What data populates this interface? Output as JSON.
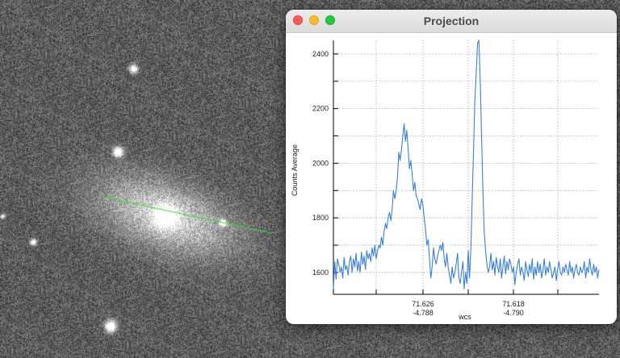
{
  "window": {
    "title": "Projection",
    "buttons": {
      "close": "close",
      "minimize": "minimize",
      "zoom": "zoom"
    }
  },
  "chart_data": {
    "type": "line",
    "xlabel": "wcs",
    "ylabel": "Counts Average",
    "ylim": [
      1520,
      2450
    ],
    "y_ticks": [
      1600,
      1800,
      2000,
      2200,
      2400
    ],
    "x_tick_labels": [
      {
        "ra": "71.626",
        "dec": "-4.788"
      },
      {
        "ra": "71.618",
        "dec": "-4.790"
      }
    ],
    "grid": true,
    "line_color": "#3a7fdc",
    "series": [
      {
        "x": [
          0,
          1,
          2,
          3,
          4,
          5,
          6,
          7,
          8,
          9,
          10,
          11,
          12,
          13,
          14,
          15,
          16,
          17,
          18,
          19,
          20,
          21,
          22,
          23,
          24,
          25,
          26,
          27,
          28,
          29,
          30,
          31,
          32,
          33,
          34,
          35,
          36,
          37,
          38,
          39,
          40,
          41,
          42,
          43,
          44,
          45,
          46,
          47,
          48,
          49,
          50,
          51,
          52,
          53,
          54,
          55,
          56,
          57,
          58,
          59,
          60,
          61,
          62,
          63,
          64,
          65,
          66,
          67,
          68,
          69,
          70,
          71,
          72,
          73,
          74,
          75,
          76,
          77,
          78,
          79,
          80,
          81,
          82,
          83,
          84,
          85,
          86,
          87,
          88,
          89,
          90,
          91,
          92,
          93,
          94,
          95,
          96,
          97,
          98,
          99,
          100,
          101,
          102,
          103,
          104,
          105,
          106,
          107,
          108,
          109,
          110,
          111,
          112,
          113,
          114,
          115,
          116,
          117,
          118,
          119,
          120,
          121,
          122,
          123,
          124,
          125,
          126,
          127,
          128,
          129,
          130,
          131,
          132,
          133,
          134,
          135,
          136,
          137,
          138,
          139,
          140,
          141,
          142,
          143,
          144,
          145,
          146,
          147,
          148,
          149,
          150,
          151,
          152,
          153,
          154,
          155,
          156,
          157,
          158,
          159,
          160,
          161,
          162,
          163,
          164,
          165,
          166,
          167,
          168,
          169,
          170,
          171,
          172,
          173,
          174,
          175,
          176,
          177,
          178,
          179,
          180,
          181,
          182,
          183,
          184,
          185,
          186,
          187,
          188,
          189,
          190,
          191,
          192,
          193,
          194,
          195,
          196,
          197,
          198,
          199
        ],
        "values": [
          1540,
          1640,
          1575,
          1650,
          1630,
          1600,
          1620,
          1580,
          1655,
          1610,
          1625,
          1590,
          1640,
          1660,
          1600,
          1650,
          1620,
          1670,
          1605,
          1640,
          1600,
          1675,
          1630,
          1660,
          1610,
          1680,
          1650,
          1670,
          1640,
          1690,
          1660,
          1700,
          1650,
          1680,
          1700,
          1690,
          1730,
          1700,
          1750,
          1780,
          1760,
          1800,
          1820,
          1790,
          1830,
          1900,
          1870,
          1900,
          1950,
          2040,
          2010,
          2050,
          2100,
          2145,
          2080,
          2120,
          2050,
          1980,
          2010,
          1960,
          1900,
          1930,
          1880,
          1870,
          1850,
          1830,
          1870,
          1850,
          1800,
          1760,
          1700,
          1720,
          1650,
          1580,
          1620,
          1690,
          1650,
          1630,
          1660,
          1680,
          1700,
          1680,
          1710,
          1650,
          1620,
          1670,
          1620,
          1590,
          1560,
          1620,
          1580,
          1600,
          1630,
          1670,
          1580,
          1560,
          1600,
          1640,
          1540,
          1600,
          1560,
          1680,
          1580,
          1690,
          1870,
          2050,
          2230,
          2330,
          2440,
          2450,
          2300,
          2100,
          1900,
          1750,
          1680,
          1630,
          1600,
          1620,
          1670,
          1610,
          1640,
          1590,
          1655,
          1620,
          1600,
          1650,
          1580,
          1620,
          1660,
          1595,
          1640,
          1610,
          1650,
          1630,
          1600,
          1620,
          1555,
          1600,
          1630,
          1650,
          1590,
          1620,
          1600,
          1570,
          1640,
          1610,
          1585,
          1630,
          1600,
          1650,
          1575,
          1620,
          1590,
          1640,
          1600,
          1630,
          1580,
          1610,
          1650,
          1590,
          1620,
          1600,
          1640,
          1610,
          1580,
          1600,
          1620,
          1570,
          1610,
          1640,
          1600,
          1590,
          1620,
          1600,
          1630,
          1610,
          1590,
          1640,
          1600,
          1620,
          1580,
          1610,
          1630,
          1600,
          1590,
          1620,
          1600,
          1610,
          1640,
          1580,
          1620,
          1600,
          1650,
          1610,
          1590,
          1630,
          1600,
          1620,
          1580,
          1610
        ]
      }
    ]
  },
  "overlay": {
    "cut_line_color": "#3fdc3f"
  }
}
